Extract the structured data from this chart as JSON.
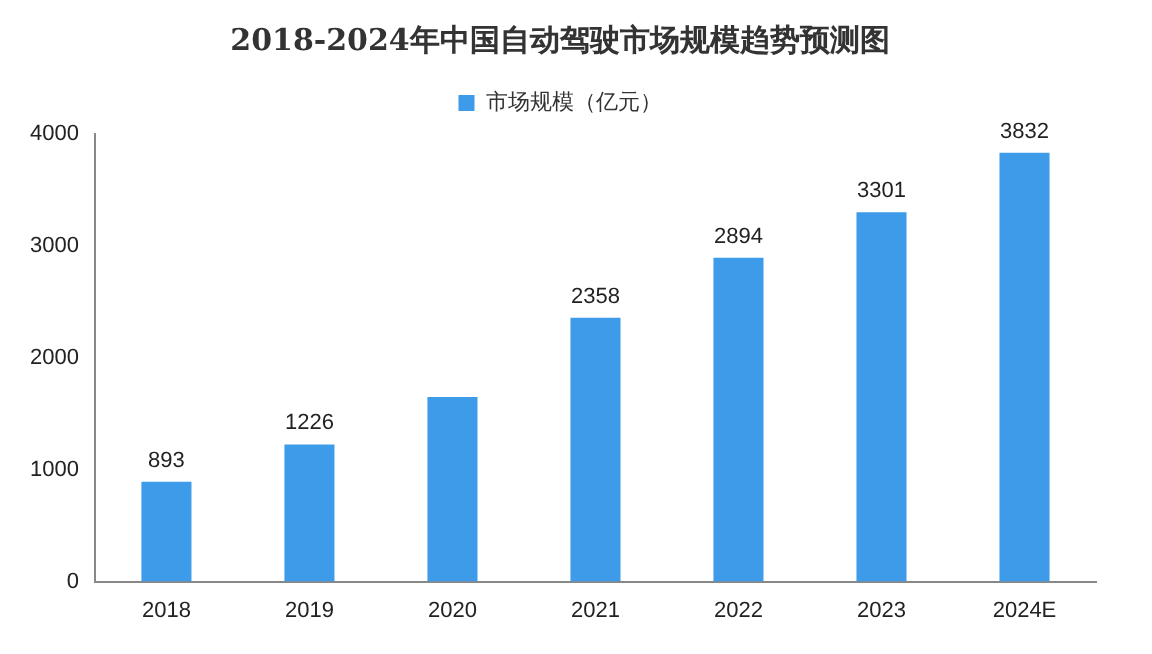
{
  "chart_data": {
    "type": "bar",
    "title": "2018-2024年中国自动驾驶市场规模趋势预测图",
    "categories": [
      "2018",
      "2019",
      "2020",
      "2021",
      "2022",
      "2023",
      "2024E"
    ],
    "series": [
      {
        "name": "市场规模（亿元）",
        "color": "#3d9be9",
        "values": [
          893,
          1226,
          1650,
          2358,
          2894,
          3301,
          3832
        ],
        "value_labels": [
          "893",
          "1226",
          null,
          "2358",
          "2894",
          "3301",
          "3832"
        ]
      }
    ],
    "ylim": [
      0,
      4000
    ],
    "yticks": [
      0,
      1000,
      2000,
      3000,
      4000
    ],
    "grid": false,
    "legend": "top"
  }
}
